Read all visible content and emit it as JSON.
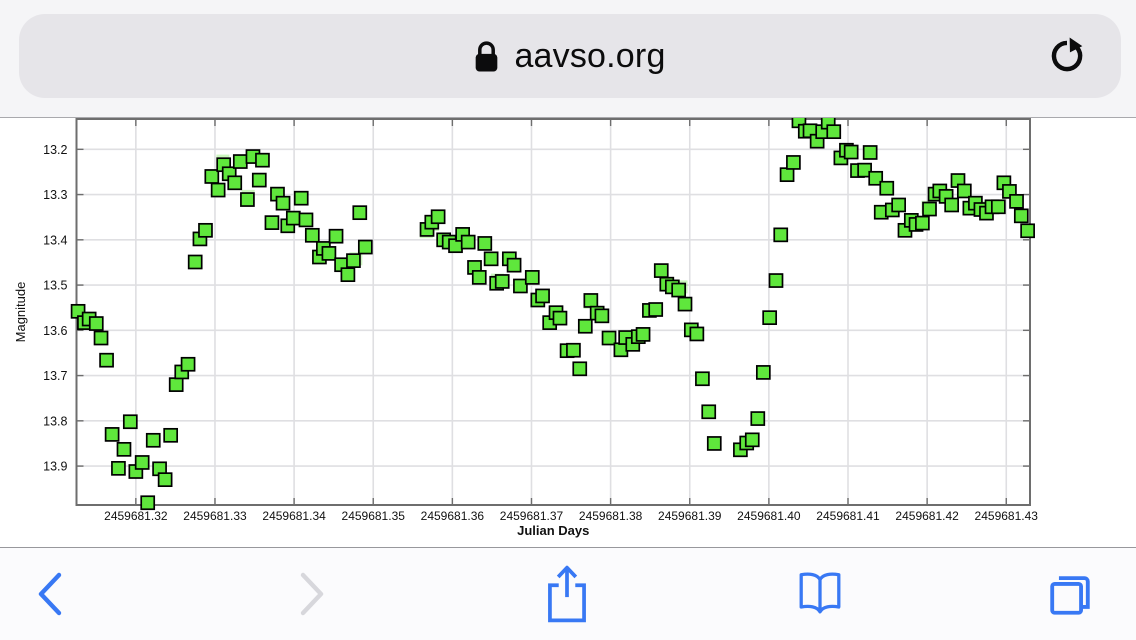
{
  "browser": {
    "address": "aavso.org"
  },
  "toolbar": {
    "buttons": [
      {
        "name": "back",
        "enabled": true
      },
      {
        "name": "forward",
        "enabled": false
      },
      {
        "name": "share",
        "enabled": true
      },
      {
        "name": "bookmarks",
        "enabled": true
      },
      {
        "name": "tabs",
        "enabled": true
      }
    ]
  },
  "colors": {
    "ios_blue": "#3878f4",
    "disabled_gray": "#d7d7dc",
    "marker_green": "#5fe73c",
    "marker_stroke": "#000000",
    "grid": "#dfdfe2",
    "frame": "#6e6e6e",
    "tick_text": "#111111"
  },
  "chart_data": {
    "type": "scatter",
    "title": "",
    "xlabel": "Julian Days",
    "ylabel": "Magnitude",
    "y_axis_inverted": true,
    "grid": true,
    "xlim": [
      2459681.3125,
      2459681.433
    ],
    "ylim_top": 13.133,
    "ylim_bottom": 13.986,
    "xticks": [
      2459681.32,
      2459681.33,
      2459681.34,
      2459681.35,
      2459681.36,
      2459681.37,
      2459681.38,
      2459681.39,
      2459681.4,
      2459681.41,
      2459681.42,
      2459681.43
    ],
    "yticks": [
      13.2,
      13.3,
      13.4,
      13.5,
      13.6,
      13.7,
      13.8,
      13.9
    ],
    "series": [
      {
        "name": "observations",
        "marker": "filled-square",
        "fill": "#5fe73c",
        "stroke": "#000000",
        "points": [
          [
            2459681.3127,
            13.558
          ],
          [
            2459681.3135,
            13.583
          ],
          [
            2459681.3141,
            13.575
          ],
          [
            2459681.315,
            13.585
          ],
          [
            2459681.3156,
            13.617
          ],
          [
            2459681.3163,
            13.666
          ],
          [
            2459681.317,
            13.83
          ],
          [
            2459681.3178,
            13.905
          ],
          [
            2459681.3185,
            13.863
          ],
          [
            2459681.3193,
            13.802
          ],
          [
            2459681.32,
            13.912
          ],
          [
            2459681.3208,
            13.892
          ],
          [
            2459681.3215,
            13.981
          ],
          [
            2459681.3222,
            13.843
          ],
          [
            2459681.323,
            13.906
          ],
          [
            2459681.3237,
            13.93
          ],
          [
            2459681.3244,
            13.832
          ],
          [
            2459681.3251,
            13.72
          ],
          [
            2459681.3258,
            13.692
          ],
          [
            2459681.3266,
            13.675
          ],
          [
            2459681.3275,
            13.449
          ],
          [
            2459681.3281,
            13.398
          ],
          [
            2459681.3288,
            13.379
          ],
          [
            2459681.3296,
            13.26
          ],
          [
            2459681.3304,
            13.29
          ],
          [
            2459681.3311,
            13.234
          ],
          [
            2459681.3318,
            13.254
          ],
          [
            2459681.3325,
            13.274
          ],
          [
            2459681.3332,
            13.227
          ],
          [
            2459681.3341,
            13.311
          ],
          [
            2459681.3348,
            13.216
          ],
          [
            2459681.3356,
            13.268
          ],
          [
            2459681.336,
            13.224
          ],
          [
            2459681.3372,
            13.362
          ],
          [
            2459681.3379,
            13.299
          ],
          [
            2459681.3386,
            13.319
          ],
          [
            2459681.3392,
            13.369
          ],
          [
            2459681.3399,
            13.352
          ],
          [
            2459681.3409,
            13.308
          ],
          [
            2459681.3415,
            13.356
          ],
          [
            2459681.3423,
            13.39
          ],
          [
            2459681.3432,
            13.438
          ],
          [
            2459681.3437,
            13.419
          ],
          [
            2459681.3444,
            13.43
          ],
          [
            2459681.3453,
            13.392
          ],
          [
            2459681.346,
            13.455
          ],
          [
            2459681.3468,
            13.477
          ],
          [
            2459681.3475,
            13.446
          ],
          [
            2459681.3483,
            13.34
          ],
          [
            2459681.349,
            13.416
          ],
          [
            2459681.3568,
            13.377
          ],
          [
            2459681.3574,
            13.361
          ],
          [
            2459681.3582,
            13.349
          ],
          [
            2459681.3589,
            13.4
          ],
          [
            2459681.3596,
            13.405
          ],
          [
            2459681.3604,
            13.413
          ],
          [
            2459681.3613,
            13.388
          ],
          [
            2459681.362,
            13.405
          ],
          [
            2459681.3628,
            13.461
          ],
          [
            2459681.3634,
            13.483
          ],
          [
            2459681.3641,
            13.408
          ],
          [
            2459681.3649,
            13.442
          ],
          [
            2459681.3656,
            13.496
          ],
          [
            2459681.3663,
            13.492
          ],
          [
            2459681.3672,
            13.442
          ],
          [
            2459681.3678,
            13.456
          ],
          [
            2459681.3686,
            13.502
          ],
          [
            2459681.3701,
            13.483
          ],
          [
            2459681.3708,
            13.533
          ],
          [
            2459681.3714,
            13.524
          ],
          [
            2459681.3723,
            13.583
          ],
          [
            2459681.3731,
            13.561
          ],
          [
            2459681.3736,
            13.573
          ],
          [
            2459681.3745,
            13.645
          ],
          [
            2459681.3753,
            13.644
          ],
          [
            2459681.3761,
            13.685
          ],
          [
            2459681.3768,
            13.591
          ],
          [
            2459681.3775,
            13.534
          ],
          [
            2459681.3783,
            13.562
          ],
          [
            2459681.3789,
            13.568
          ],
          [
            2459681.3798,
            13.617
          ],
          [
            2459681.3813,
            13.643
          ],
          [
            2459681.3819,
            13.616
          ],
          [
            2459681.3828,
            13.631
          ],
          [
            2459681.3835,
            13.614
          ],
          [
            2459681.3841,
            13.609
          ],
          [
            2459681.3849,
            13.556
          ],
          [
            2459681.3857,
            13.554
          ],
          [
            2459681.3864,
            13.468
          ],
          [
            2459681.3871,
            13.498
          ],
          [
            2459681.3878,
            13.504
          ],
          [
            2459681.3886,
            13.511
          ],
          [
            2459681.3894,
            13.542
          ],
          [
            2459681.3902,
            13.599
          ],
          [
            2459681.3909,
            13.608
          ],
          [
            2459681.3916,
            13.707
          ],
          [
            2459681.3924,
            13.78
          ],
          [
            2459681.3931,
            13.85
          ],
          [
            2459681.3964,
            13.864
          ],
          [
            2459681.3972,
            13.849
          ],
          [
            2459681.3979,
            13.842
          ],
          [
            2459681.3986,
            13.795
          ],
          [
            2459681.3993,
            13.693
          ],
          [
            2459681.4001,
            13.572
          ],
          [
            2459681.4009,
            13.49
          ],
          [
            2459681.4015,
            13.389
          ],
          [
            2459681.4023,
            13.256
          ],
          [
            2459681.4031,
            13.229
          ],
          [
            2459681.4038,
            13.137
          ],
          [
            2459681.4046,
            13.16
          ],
          [
            2459681.4052,
            13.159
          ],
          [
            2459681.4061,
            13.182
          ],
          [
            2459681.4068,
            13.161
          ],
          [
            2459681.4075,
            13.14
          ],
          [
            2459681.4082,
            13.161
          ],
          [
            2459681.4091,
            13.219
          ],
          [
            2459681.4098,
            13.202
          ],
          [
            2459681.4104,
            13.206
          ],
          [
            2459681.4112,
            13.247
          ],
          [
            2459681.4121,
            13.246
          ],
          [
            2459681.4128,
            13.207
          ],
          [
            2459681.4135,
            13.264
          ],
          [
            2459681.4142,
            13.339
          ],
          [
            2459681.4149,
            13.286
          ],
          [
            2459681.4156,
            13.334
          ],
          [
            2459681.4164,
            13.323
          ],
          [
            2459681.4172,
            13.379
          ],
          [
            2459681.418,
            13.357
          ],
          [
            2459681.4186,
            13.366
          ],
          [
            2459681.4194,
            13.363
          ],
          [
            2459681.4203,
            13.332
          ],
          [
            2459681.421,
            13.299
          ],
          [
            2459681.4216,
            13.292
          ],
          [
            2459681.4224,
            13.304
          ],
          [
            2459681.4231,
            13.323
          ],
          [
            2459681.4239,
            13.269
          ],
          [
            2459681.4247,
            13.292
          ],
          [
            2459681.4254,
            13.33
          ],
          [
            2459681.4261,
            13.319
          ],
          [
            2459681.4268,
            13.333
          ],
          [
            2459681.4275,
            13.341
          ],
          [
            2459681.4282,
            13.327
          ],
          [
            2459681.429,
            13.327
          ],
          [
            2459681.4297,
            13.274
          ],
          [
            2459681.4304,
            13.293
          ],
          [
            2459681.4313,
            13.315
          ],
          [
            2459681.4319,
            13.347
          ],
          [
            2459681.4327,
            13.38
          ]
        ]
      },
      {
        "name": "overlapped-pale-observations",
        "marker": "square",
        "fill": "rgba(105,228,70,0.35)",
        "stroke": "none",
        "points": [
          [
            2459681.331,
            13.226
          ],
          [
            2459681.3342,
            13.304
          ],
          [
            2459681.3478,
            13.442
          ],
          [
            2459681.3567,
            13.382
          ],
          [
            2459681.3575,
            13.366
          ],
          [
            2459681.3657,
            13.489
          ],
          [
            2459681.3774,
            13.538
          ],
          [
            2459681.3889,
            13.504
          ],
          [
            2459681.4061,
            13.178
          ],
          [
            2459681.4201,
            13.328
          ],
          [
            2459681.4221,
            13.3
          ],
          [
            2459681.4266,
            13.328
          ]
        ]
      }
    ]
  }
}
